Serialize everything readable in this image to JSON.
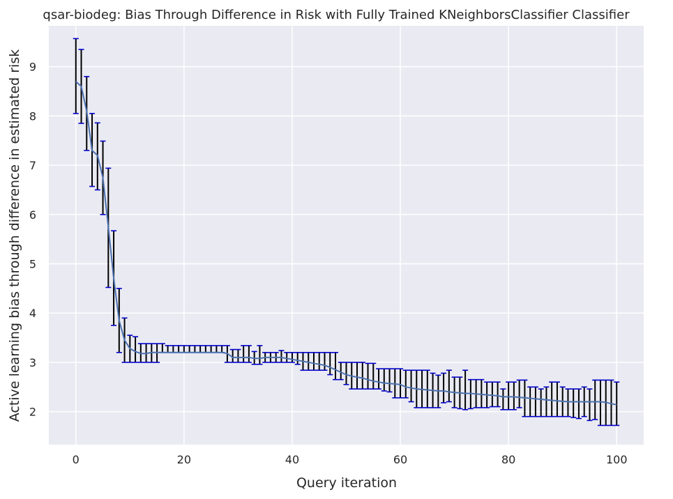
{
  "chart_data": {
    "type": "line",
    "title": "qsar-biodeg: Bias Through Difference in Risk with Fully Trained KNeighborsClassifier Classifier",
    "xlabel": "Query iteration",
    "ylabel": "Active learning bias through difference in estimated risk",
    "xlim": [
      -5,
      105
    ],
    "ylim": [
      1.33,
      9.83
    ],
    "xticks": [
      0,
      20,
      40,
      60,
      80,
      100
    ],
    "yticks": [
      2,
      3,
      4,
      5,
      6,
      7,
      8,
      9
    ],
    "grid": true,
    "colors": {
      "background": "#eaeaf2",
      "grid": "#ffffff",
      "line": "#4c72b0",
      "errorbar": "#000000",
      "cap": "#0000cc"
    },
    "series": [
      {
        "x": [
          0,
          1,
          2,
          3,
          4,
          5,
          6,
          7,
          8,
          9,
          10,
          11,
          12,
          13,
          14,
          15,
          16,
          17,
          18,
          19,
          20,
          21,
          22,
          23,
          24,
          25,
          26,
          27,
          28,
          29,
          30,
          31,
          32,
          33,
          34,
          35,
          36,
          37,
          38,
          39,
          40,
          41,
          42,
          43,
          44,
          45,
          46,
          47,
          48,
          49,
          50,
          51,
          52,
          53,
          54,
          55,
          56,
          57,
          58,
          59,
          60,
          61,
          62,
          63,
          64,
          65,
          66,
          67,
          68,
          69,
          70,
          71,
          72,
          73,
          74,
          75,
          76,
          77,
          78,
          79,
          80,
          81,
          82,
          83,
          84,
          85,
          86,
          87,
          88,
          89,
          90,
          91,
          92,
          93,
          94,
          95,
          96,
          97,
          98,
          99,
          100
        ],
        "values": [
          8.7,
          8.6,
          8.1,
          7.3,
          7.2,
          6.75,
          5.75,
          4.7,
          3.85,
          3.45,
          3.28,
          3.22,
          3.18,
          3.18,
          3.2,
          3.2,
          3.2,
          3.2,
          3.2,
          3.2,
          3.2,
          3.2,
          3.2,
          3.2,
          3.2,
          3.2,
          3.2,
          3.2,
          3.18,
          3.1,
          3.1,
          3.1,
          3.1,
          3.08,
          3.08,
          3.1,
          3.1,
          3.1,
          3.1,
          3.08,
          3.06,
          3.04,
          3.02,
          3.0,
          2.98,
          2.96,
          2.94,
          2.9,
          2.85,
          2.8,
          2.75,
          2.72,
          2.7,
          2.68,
          2.65,
          2.62,
          2.6,
          2.58,
          2.57,
          2.56,
          2.55,
          2.5,
          2.48,
          2.46,
          2.45,
          2.44,
          2.43,
          2.42,
          2.42,
          2.4,
          2.39,
          2.38,
          2.37,
          2.37,
          2.36,
          2.35,
          2.34,
          2.33,
          2.32,
          2.3,
          2.3,
          2.3,
          2.29,
          2.28,
          2.27,
          2.26,
          2.25,
          2.24,
          2.23,
          2.22,
          2.21,
          2.2,
          2.2,
          2.2,
          2.2,
          2.2,
          2.2,
          2.2,
          2.19,
          2.16,
          2.14
        ],
        "lower": [
          8.05,
          7.85,
          7.3,
          6.57,
          6.5,
          6.0,
          4.52,
          3.75,
          3.2,
          3.0,
          3.0,
          3.0,
          3.0,
          3.0,
          3.0,
          3.0,
          3.2,
          3.2,
          3.2,
          3.2,
          3.2,
          3.2,
          3.2,
          3.2,
          3.2,
          3.2,
          3.2,
          3.2,
          3.0,
          3.0,
          3.0,
          3.0,
          3.0,
          2.96,
          2.96,
          3.0,
          3.0,
          3.0,
          3.0,
          3.0,
          3.0,
          2.96,
          2.84,
          2.84,
          2.84,
          2.84,
          2.84,
          2.75,
          2.65,
          2.65,
          2.55,
          2.46,
          2.46,
          2.46,
          2.46,
          2.46,
          2.46,
          2.42,
          2.4,
          2.28,
          2.28,
          2.28,
          2.2,
          2.08,
          2.08,
          2.08,
          2.08,
          2.08,
          2.18,
          2.2,
          2.08,
          2.06,
          2.04,
          2.06,
          2.08,
          2.08,
          2.08,
          2.1,
          2.1,
          2.04,
          2.04,
          2.04,
          2.08,
          1.9,
          1.9,
          1.9,
          1.9,
          1.9,
          1.9,
          1.9,
          1.9,
          1.9,
          1.88,
          1.86,
          1.9,
          1.82,
          1.84,
          1.72,
          1.72,
          1.72,
          1.72
        ],
        "upper": [
          9.57,
          9.35,
          8.8,
          8.05,
          7.86,
          7.49,
          6.94,
          5.67,
          4.5,
          3.9,
          3.55,
          3.52,
          3.38,
          3.38,
          3.38,
          3.38,
          3.38,
          3.34,
          3.34,
          3.34,
          3.34,
          3.34,
          3.34,
          3.34,
          3.34,
          3.34,
          3.34,
          3.34,
          3.34,
          3.26,
          3.26,
          3.34,
          3.34,
          3.22,
          3.34,
          3.2,
          3.2,
          3.2,
          3.24,
          3.2,
          3.2,
          3.2,
          3.2,
          3.2,
          3.2,
          3.2,
          3.2,
          3.2,
          3.2,
          3.0,
          3.0,
          3.0,
          3.0,
          3.0,
          2.98,
          2.98,
          2.87,
          2.87,
          2.87,
          2.87,
          2.87,
          2.84,
          2.84,
          2.84,
          2.84,
          2.84,
          2.78,
          2.74,
          2.78,
          2.84,
          2.7,
          2.7,
          2.84,
          2.65,
          2.65,
          2.65,
          2.6,
          2.6,
          2.6,
          2.46,
          2.6,
          2.6,
          2.64,
          2.64,
          2.5,
          2.5,
          2.46,
          2.5,
          2.6,
          2.6,
          2.5,
          2.46,
          2.46,
          2.46,
          2.5,
          2.46,
          2.64,
          2.64,
          2.64,
          2.64,
          2.6
        ]
      }
    ]
  }
}
